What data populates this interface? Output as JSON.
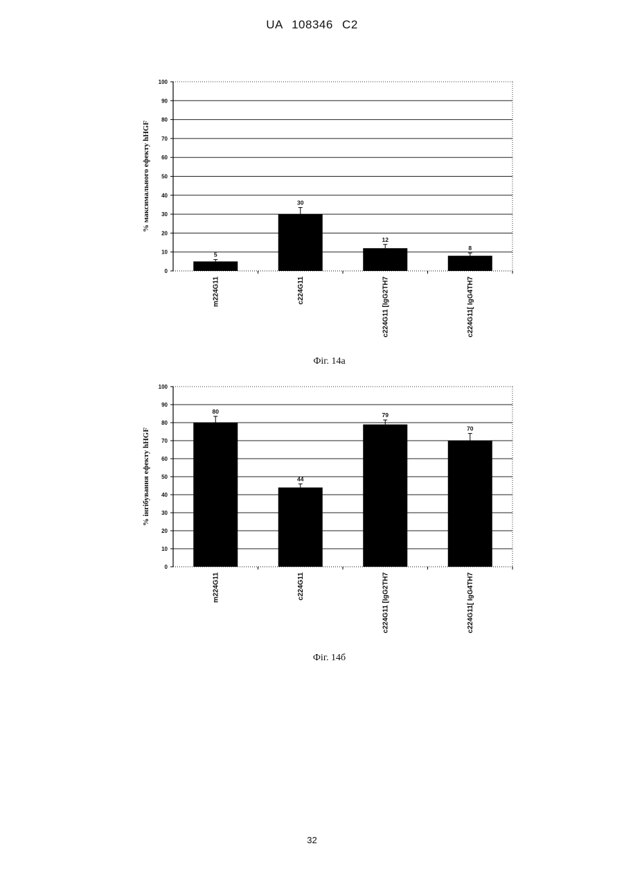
{
  "header": {
    "text": "UA   108346   C2"
  },
  "page_number": "32",
  "chart_data": [
    {
      "type": "bar",
      "caption": "Фіг. 14а",
      "ylabel": "% максимального ефекту hHGF",
      "categories": [
        "m224G11",
        "c224G11",
        "c224G11 [IgG2TH7",
        "c224G11[ IgG4TH7"
      ],
      "values": [
        5,
        30,
        12,
        8
      ],
      "data_labels": [
        "5",
        "30",
        "12",
        "8"
      ],
      "error_bars": [
        1,
        3.5,
        2,
        1.5
      ],
      "ylim": [
        0,
        100
      ],
      "yticks": [
        0,
        10,
        20,
        30,
        40,
        50,
        60,
        70,
        80,
        90,
        100
      ],
      "bar_color": "#000000",
      "grid": true
    },
    {
      "type": "bar",
      "caption": "Фіг. 14б",
      "ylabel": "% інгібування ефекту hHGF",
      "categories": [
        "m224G11",
        "c224G11",
        "c224G11 [IgG2TH7",
        "c224G11[ IgG4TH7"
      ],
      "values": [
        80,
        44,
        79,
        70
      ],
      "data_labels": [
        "80",
        "44",
        "79",
        "70"
      ],
      "error_bars": [
        3.5,
        2,
        2.5,
        4
      ],
      "ylim": [
        0,
        100
      ],
      "yticks": [
        0,
        10,
        20,
        30,
        40,
        50,
        60,
        70,
        80,
        90,
        100
      ],
      "bar_color": "#000000",
      "grid": true
    }
  ]
}
